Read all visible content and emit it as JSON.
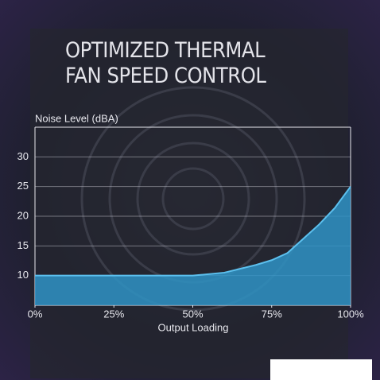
{
  "chart_data": {
    "type": "area",
    "title": "OPTIMIZED THERMAL FAN SPEED CONTROL",
    "y_label": "Noise Level (dBA)",
    "x_label": "Output Loading",
    "x": [
      0,
      50,
      60,
      70,
      75,
      80,
      90,
      95,
      100
    ],
    "values": [
      10,
      10,
      10.5,
      11.8,
      12.6,
      13.8,
      18.6,
      21.4,
      25
    ],
    "color": "#2f93c6",
    "line_color": "#5cc0ee",
    "xlim": [
      0,
      100
    ],
    "xticks": [
      {
        "value": 0,
        "label": "0%"
      },
      {
        "value": 25,
        "label": "25%"
      },
      {
        "value": 50,
        "label": "50%"
      },
      {
        "value": 75,
        "label": "75%"
      },
      {
        "value": 100,
        "label": "100%"
      }
    ],
    "ylim": [
      5,
      35
    ],
    "yticks": [
      10,
      15,
      20,
      25,
      30
    ],
    "grid": true
  }
}
